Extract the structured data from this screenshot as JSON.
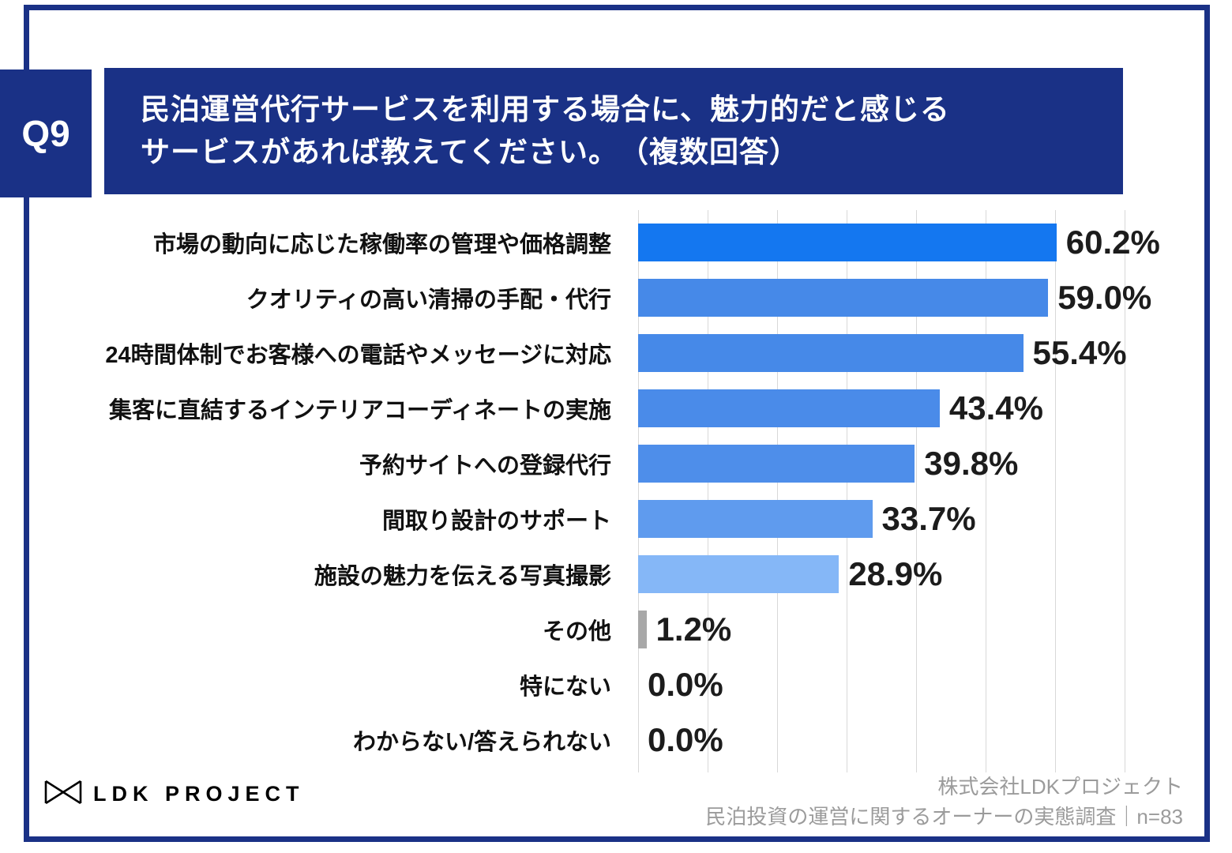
{
  "header": {
    "question_number": "Q9",
    "title_line1": "民泊運営代行サービスを利用する場合に、魅力的だと感じる",
    "title_line2": "サービスがあれば教えてください。　（複数回答）"
  },
  "chart_data": {
    "type": "bar",
    "orientation": "horizontal",
    "title": "民泊運営代行サービスを利用する場合に、魅力的だと感じるサービスがあれば教えてください。（複数回答）",
    "categories": [
      "市場の動向に応じた稼働率の管理や価格調整",
      "クオリティの高い清掃の手配・代行",
      "24時間体制でお客様への電話やメッセージに対応",
      "集客に直結するインテリアコーディネートの実施",
      "予約サイトへの登録代行",
      "間取り設計のサポート",
      "施設の魅力を伝える写真撮影",
      "その他",
      "特にない",
      "わからない/答えられない"
    ],
    "values": [
      60.2,
      59.0,
      55.4,
      43.4,
      39.8,
      33.7,
      28.9,
      1.2,
      0.0,
      0.0
    ],
    "value_labels": [
      "60.2%",
      "59.0%",
      "55.4%",
      "43.4%",
      "39.8%",
      "33.7%",
      "28.9%",
      "1.2%",
      "0.0%",
      "0.0%"
    ],
    "bar_colors": [
      "#1477f0",
      "#4689e8",
      "#4689e8",
      "#4a8be9",
      "#4e8eea",
      "#5f9bee",
      "#85b7f7",
      "#a8a8a8",
      "#a8a8a8",
      "#a8a8a8"
    ],
    "xlabel": "",
    "ylabel": "",
    "xlim": [
      0,
      70
    ],
    "gridline_interval": 10,
    "grid": true,
    "legend": false
  },
  "footer": {
    "logo_text": "LDK PROJECT",
    "source_line1": "株式会社LDKプロジェクト",
    "source_line2": "民泊投資の運営に関するオーナーの実態調査｜n=83"
  },
  "colors": {
    "navy": "#1a3186",
    "gridline": "#d8d8d8",
    "category_text": "#111111",
    "value_text": "#1c1c1c",
    "source_text": "#9b9b9b"
  }
}
